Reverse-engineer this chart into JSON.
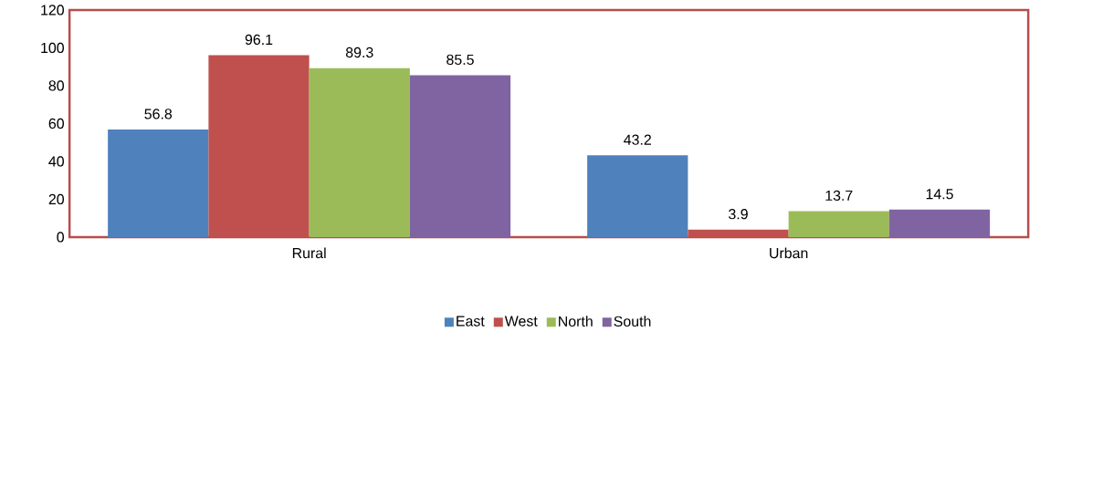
{
  "chart_data": {
    "type": "bar",
    "categories": [
      "Rural",
      "Urban"
    ],
    "series": [
      {
        "name": "East",
        "color": "#4f81bd",
        "values": [
          56.8,
          43.2
        ]
      },
      {
        "name": "West",
        "color": "#c0504d",
        "values": [
          96.1,
          3.9
        ]
      },
      {
        "name": "North",
        "color": "#9bbb59",
        "values": [
          89.3,
          13.7
        ]
      },
      {
        "name": "South",
        "color": "#8064a2",
        "values": [
          85.5,
          14.5
        ]
      }
    ],
    "ylim": [
      0,
      120
    ],
    "yticks": [
      0,
      20,
      40,
      60,
      80,
      100,
      120
    ],
    "data_labels": true,
    "legend": "bottom",
    "grid": false
  }
}
